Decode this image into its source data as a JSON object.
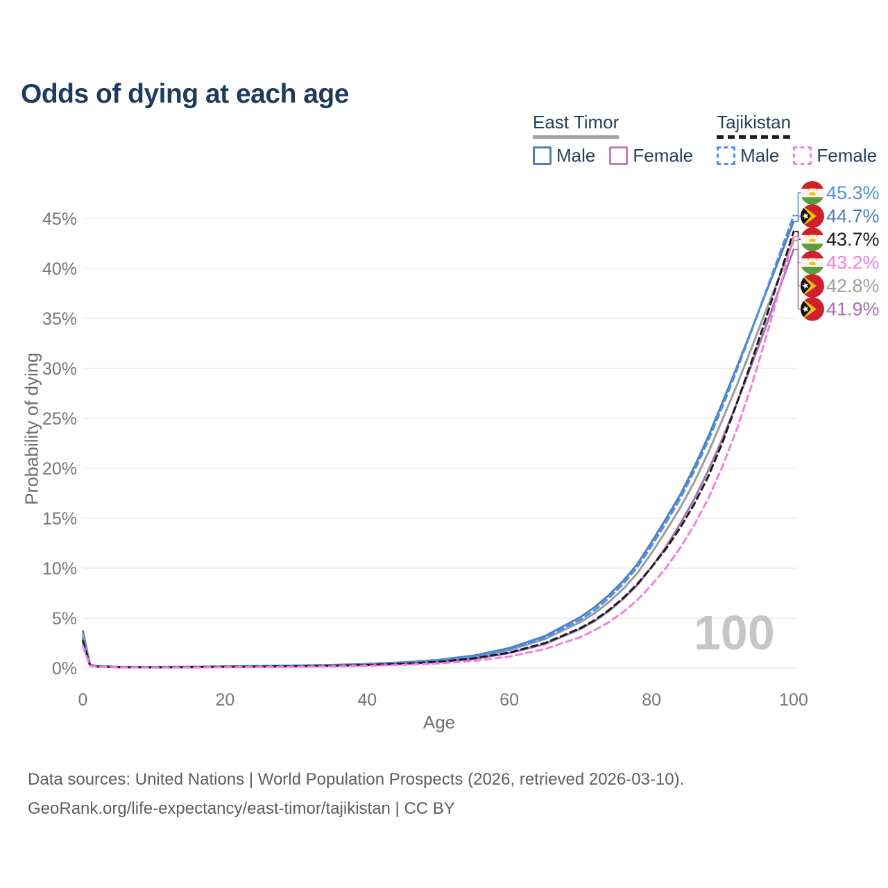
{
  "title": "Odds of dying at each age",
  "legend": {
    "groups": [
      {
        "name": "East Timor",
        "line_style": "solid",
        "underline_color": "#a3a3a3",
        "items": [
          {
            "label": "Male",
            "color": "#4d7fbf",
            "dashed": false
          },
          {
            "label": "Female",
            "color": "#bc7fbe",
            "dashed": false
          }
        ]
      },
      {
        "name": "Tajikistan",
        "line_style": "dashed",
        "underline_color": "#1c1c1c",
        "items": [
          {
            "label": "Male",
            "color": "#4a8ef5",
            "dashed": true
          },
          {
            "label": "Female",
            "color": "#fa7be6",
            "dashed": true
          }
        ]
      }
    ]
  },
  "watermark": "100",
  "footer": {
    "line1": "Data sources: United Nations | World Population Prospects (2026, retrieved 2026-03-10).",
    "line2": "GeoRank.org/life-expectancy/east-timor/tajikistan | CC BY"
  },
  "chart_data": {
    "type": "line",
    "title": "Odds of dying at each age",
    "xlabel": "Age",
    "ylabel": "Probability of dying",
    "xlim": [
      0,
      100
    ],
    "ylim": [
      0,
      47.5
    ],
    "grid": true,
    "legend_position": "top-right",
    "x_ticks": [
      0,
      20,
      40,
      60,
      80,
      100
    ],
    "y_ticks": [
      0,
      5,
      10,
      15,
      20,
      25,
      30,
      35,
      40,
      45
    ],
    "y_tick_suffix": "%",
    "ages": [
      0,
      1,
      2,
      5,
      10,
      15,
      20,
      25,
      30,
      35,
      40,
      45,
      50,
      55,
      60,
      65,
      70,
      72,
      74,
      76,
      78,
      80,
      82,
      84,
      86,
      88,
      90,
      92,
      94,
      96,
      98,
      100
    ],
    "series": [
      {
        "name": "Tajikistan Male",
        "country": "tajikistan",
        "sex": "male",
        "color": "#4a8ef5",
        "dashed": true,
        "end_value": 45.3,
        "end_label": "45.3%",
        "values": [
          2.9,
          0.3,
          0.18,
          0.1,
          0.08,
          0.11,
          0.15,
          0.18,
          0.22,
          0.28,
          0.38,
          0.52,
          0.76,
          1.15,
          1.85,
          3.0,
          4.85,
          5.8,
          7.0,
          8.4,
          10.1,
          12.2,
          14.5,
          16.9,
          19.7,
          22.8,
          26.2,
          29.8,
          33.6,
          37.5,
          41.4,
          45.3
        ]
      },
      {
        "name": "East Timor Male",
        "country": "east-timor",
        "sex": "male",
        "color": "#4d7fbf",
        "dashed": false,
        "end_value": 44.7,
        "end_label": "44.7%",
        "values": [
          3.7,
          0.35,
          0.2,
          0.12,
          0.1,
          0.13,
          0.17,
          0.21,
          0.25,
          0.31,
          0.42,
          0.57,
          0.82,
          1.25,
          2.0,
          3.2,
          5.1,
          6.1,
          7.3,
          8.7,
          10.4,
          12.6,
          14.9,
          17.3,
          20.1,
          23.2,
          26.6,
          30.1,
          33.7,
          37.4,
          41.0,
          44.7
        ]
      },
      {
        "name": "Tajikistan Both sexes",
        "country": "tajikistan",
        "sex": "both",
        "color": "#1c1c1c",
        "dashed": true,
        "end_value": 43.7,
        "end_label": "43.7%",
        "values": [
          2.7,
          0.27,
          0.16,
          0.09,
          0.07,
          0.09,
          0.13,
          0.15,
          0.18,
          0.23,
          0.31,
          0.43,
          0.63,
          0.97,
          1.55,
          2.5,
          4.0,
          4.8,
          5.8,
          7.0,
          8.4,
          10.1,
          11.9,
          14.0,
          16.4,
          19.2,
          22.6,
          26.5,
          30.5,
          34.8,
          39.2,
          43.7
        ]
      },
      {
        "name": "Tajikistan Female",
        "country": "tajikistan",
        "sex": "female",
        "color": "#fa7be6",
        "dashed": true,
        "end_value": 43.2,
        "end_label": "43.2%",
        "values": [
          2.2,
          0.22,
          0.13,
          0.07,
          0.05,
          0.06,
          0.08,
          0.1,
          0.12,
          0.16,
          0.22,
          0.31,
          0.46,
          0.72,
          1.15,
          1.9,
          3.1,
          3.8,
          4.6,
          5.6,
          6.8,
          8.3,
          10.0,
          12.0,
          14.3,
          17.0,
          20.2,
          23.9,
          28.1,
          32.8,
          37.9,
          43.2
        ]
      },
      {
        "name": "East Timor Both sexes",
        "country": "east-timor",
        "sex": "both",
        "color": "#9c9c9c",
        "dashed": false,
        "end_value": 42.8,
        "end_label": "42.8%",
        "values": [
          3.3,
          0.31,
          0.19,
          0.11,
          0.09,
          0.11,
          0.15,
          0.18,
          0.21,
          0.27,
          0.36,
          0.49,
          0.72,
          1.09,
          1.8,
          2.9,
          4.6,
          5.5,
          6.6,
          7.9,
          9.5,
          11.5,
          13.7,
          16.0,
          18.6,
          21.6,
          24.9,
          28.3,
          31.9,
          35.6,
          39.2,
          42.8
        ]
      },
      {
        "name": "East Timor Female",
        "country": "east-timor",
        "sex": "female",
        "color": "#a770b2",
        "dashed": false,
        "end_value": 41.9,
        "end_label": "41.9%",
        "values": [
          3.0,
          0.27,
          0.16,
          0.09,
          0.07,
          0.09,
          0.12,
          0.14,
          0.17,
          0.22,
          0.3,
          0.41,
          0.6,
          0.92,
          1.5,
          2.4,
          3.9,
          4.7,
          5.7,
          6.9,
          8.3,
          10.1,
          12.1,
          14.4,
          16.9,
          19.8,
          23.0,
          26.5,
          30.2,
          34.0,
          38.0,
          41.9
        ]
      }
    ]
  }
}
